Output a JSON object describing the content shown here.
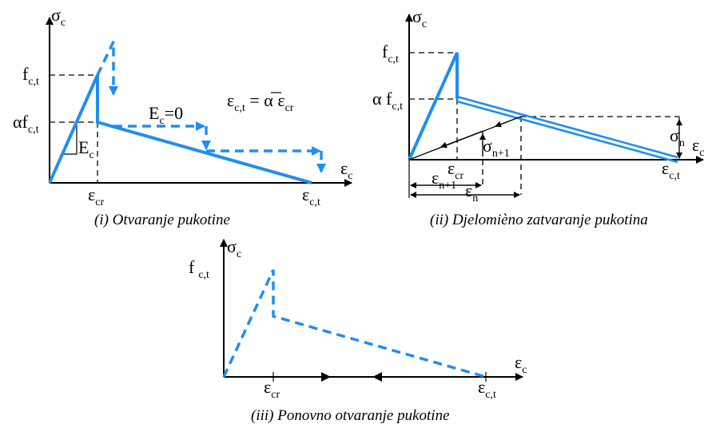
{
  "captions": {
    "p1": "(i) Otvaranje pukotine",
    "p2": "(ii) Djelomièno zatvaranje pukotina",
    "p3": "(iii) Ponovno otvaranje pukotine"
  },
  "symbols": {
    "sigma": "σ",
    "eps": "ε",
    "alpha": "α",
    "f": "f",
    "E": "E",
    "sub_c": "c",
    "sub_ct": "c,t",
    "sub_cr": "cr",
    "sub_n": "n",
    "sub_n1": "n+1",
    "ec_eq0_tail": "=0",
    "eq_mid": " = ",
    "eq_alpha_bar": "α",
    "f_spaced": "f"
  },
  "colors": {
    "line": "#1f8ef1",
    "axis": "#000000"
  }
}
